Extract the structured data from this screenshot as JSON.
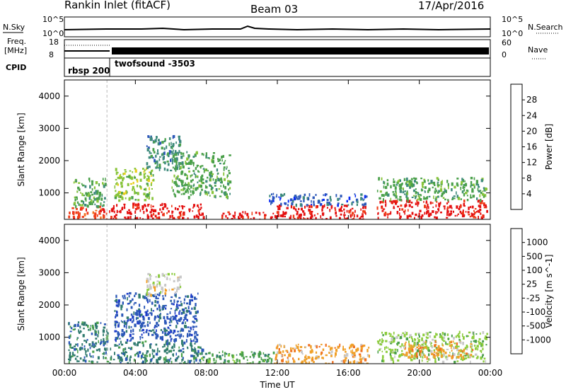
{
  "header": {
    "station": "Rankin Inlet (fitACF)",
    "beam": "Beam 03",
    "date": "17/Apr/2016"
  },
  "summary_panel": {
    "nsky_label": "N.Sky",
    "nsky_ticks": [
      "10^5",
      "10^0"
    ],
    "nsearch_label": "N.Search",
    "nsearch_ticks_right": [
      "10^5",
      "10^0"
    ],
    "freq_label_1": "Freq.",
    "freq_label_2": "[MHz]",
    "freq_ticks": [
      "18",
      "8"
    ],
    "nave_label": "Nave",
    "nave_ticks_right": [
      "60",
      "0"
    ],
    "cpid_label": "CPID",
    "cpid_entries": [
      "rbsp 200",
      "twofsound -3503"
    ]
  },
  "chart_data": [
    {
      "type": "heatmap",
      "name": "power",
      "ylabel": "Slant Range [km]",
      "xlabel": "",
      "ylim": [
        180,
        4500
      ],
      "y_ticks": [
        1000,
        2000,
        3000,
        4000
      ],
      "x_tick_labels": [
        "00:00",
        "04:00",
        "08:00",
        "12:00",
        "16:00",
        "20:00",
        "00:00"
      ],
      "colorbar": {
        "label": "Power [dB]",
        "tick_labels": [
          "4",
          "8",
          "12",
          "16",
          "20",
          "24",
          "28"
        ],
        "colors": [
          "#0a2cf5",
          "#2c58b8",
          "#3e8a7c",
          "#4aa04a",
          "#88c43a",
          "#e8cf1e",
          "#f0a028",
          "#f07020",
          "#f03c18",
          "#e41010"
        ]
      },
      "regions": [
        {
          "t0": 0.2,
          "t1": 2.4,
          "r0": 200,
          "r1": 600,
          "color": "#f03c18"
        },
        {
          "t0": 0.5,
          "t1": 2.3,
          "r0": 600,
          "r1": 1500,
          "color": "#4aa04a"
        },
        {
          "t0": 2.5,
          "t1": 7.8,
          "r0": 200,
          "r1": 700,
          "color": "#e41010"
        },
        {
          "t0": 2.8,
          "t1": 5.0,
          "r0": 800,
          "r1": 1800,
          "color": "#88c43a"
        },
        {
          "t0": 4.6,
          "t1": 6.5,
          "r0": 1700,
          "r1": 2800,
          "color": "#3e8a7c"
        },
        {
          "t0": 6.0,
          "t1": 9.3,
          "r0": 900,
          "r1": 2300,
          "color": "#4aa04a"
        },
        {
          "t0": 8.8,
          "t1": 11.8,
          "r0": 200,
          "r1": 450,
          "color": "#e41010"
        },
        {
          "t0": 11.8,
          "t1": 17.0,
          "r0": 200,
          "r1": 650,
          "color": "#e41010"
        },
        {
          "t0": 11.5,
          "t1": 17.0,
          "r0": 650,
          "r1": 1000,
          "color": "#2c58b8"
        },
        {
          "t0": 17.6,
          "t1": 23.8,
          "r0": 250,
          "r1": 800,
          "color": "#e41010"
        },
        {
          "t0": 17.6,
          "t1": 23.8,
          "r0": 800,
          "r1": 1500,
          "color": "#4aa04a"
        }
      ]
    },
    {
      "type": "heatmap",
      "name": "velocity",
      "ylabel": "Slant Range [km]",
      "xlabel": "Time UT",
      "ylim": [
        180,
        4500
      ],
      "y_ticks": [
        1000,
        2000,
        3000,
        4000
      ],
      "x_tick_labels": [
        "00:00",
        "04:00",
        "08:00",
        "12:00",
        "16:00",
        "20:00",
        "00:00"
      ],
      "colorbar": {
        "label": "Velocity [m s^-1]",
        "tick_labels": [
          "1000",
          "500",
          "100",
          "25",
          "-25",
          "-100",
          "-500",
          "-1000"
        ],
        "colors": [
          "#1e3cc8",
          "#2c58b8",
          "#2f7a6e",
          "#4aa04a",
          "#8ccc3c",
          "#c8c8c8",
          "#f0a028",
          "#f07020",
          "#f03c18",
          "#e41010"
        ]
      },
      "regions": [
        {
          "t0": 0.2,
          "t1": 2.4,
          "r0": 250,
          "r1": 1500,
          "color": "#2f7a6e"
        },
        {
          "t0": 2.5,
          "t1": 7.8,
          "r0": 200,
          "r1": 900,
          "color": "#2f7a6e"
        },
        {
          "t0": 2.8,
          "t1": 7.5,
          "r0": 900,
          "r1": 2400,
          "color": "#2c58b8"
        },
        {
          "t0": 4.6,
          "t1": 6.5,
          "r0": 2300,
          "r1": 3000,
          "color": "#c8c8c8"
        },
        {
          "t0": 7.5,
          "t1": 11.8,
          "r0": 200,
          "r1": 600,
          "color": "#4aa04a"
        },
        {
          "t0": 11.8,
          "t1": 17.2,
          "r0": 200,
          "r1": 800,
          "color": "#f0a028"
        },
        {
          "t0": 17.6,
          "t1": 23.8,
          "r0": 250,
          "r1": 1200,
          "color": "#8ccc3c"
        },
        {
          "t0": 19.0,
          "t1": 23.0,
          "r0": 400,
          "r1": 900,
          "color": "#f0a028"
        }
      ]
    }
  ]
}
